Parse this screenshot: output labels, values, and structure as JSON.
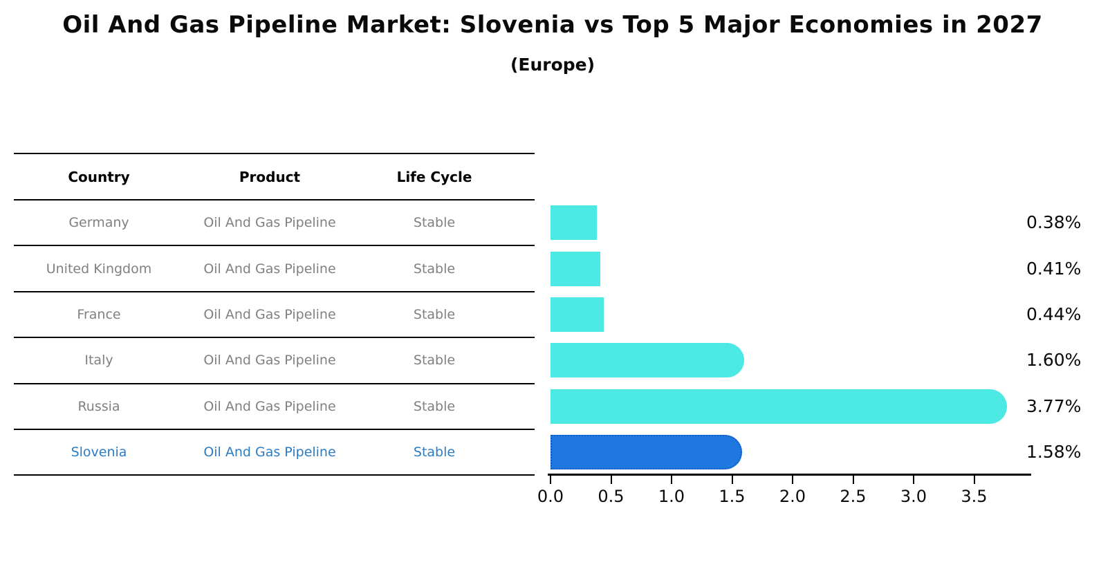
{
  "title": "Oil And Gas Pipeline Market: Slovenia vs Top 5 Major Economies in 2027",
  "subtitle": "(Europe)",
  "table": {
    "headers": [
      "Country",
      "Product",
      "Life Cycle"
    ],
    "rows": [
      {
        "country": "Germany",
        "product": "Oil And Gas Pipeline",
        "life_cycle": "Stable",
        "highlighted": false
      },
      {
        "country": "United Kingdom",
        "product": "Oil And Gas Pipeline",
        "life_cycle": "Stable",
        "highlighted": false
      },
      {
        "country": "France",
        "product": "Oil And Gas Pipeline",
        "life_cycle": "Stable",
        "highlighted": false
      },
      {
        "country": "Italy",
        "product": "Oil And Gas Pipeline",
        "life_cycle": "Stable",
        "highlighted": false
      },
      {
        "country": "Russia",
        "product": "Oil And Gas Pipeline",
        "life_cycle": "Stable",
        "highlighted": false
      },
      {
        "country": "Slovenia",
        "product": "Oil And Gas Pipeline",
        "life_cycle": "Stable",
        "highlighted": true
      }
    ]
  },
  "chart_data": {
    "type": "bar",
    "orientation": "horizontal",
    "title": "Oil And Gas Pipeline Market: Slovenia vs Top 5 Major Economies in 2027",
    "subtitle": "(Europe)",
    "categories": [
      "Germany",
      "United Kingdom",
      "France",
      "Italy",
      "Russia",
      "Slovenia"
    ],
    "values": [
      0.38,
      0.41,
      0.44,
      1.6,
      3.77,
      1.58
    ],
    "value_labels": [
      "0.38%",
      "0.41%",
      "0.44%",
      "1.60%",
      "3.77%",
      "1.58%"
    ],
    "highlight_index": 5,
    "xlabel": "",
    "ylabel": "",
    "xlim": [
      0,
      3.97
    ],
    "xtick_labels": [
      "0.0",
      "0.5",
      "1.0",
      "1.5",
      "2.0",
      "2.5",
      "3.0",
      "3.5"
    ],
    "grid": false,
    "legend": null
  },
  "colors": {
    "bar": "#4BE8E4",
    "highlight_bar": "#1E78E0",
    "highlight_bar_border": "#0F5CC2",
    "highlight_text": "#2C7CC4",
    "row_text": "#808080",
    "header_text": "#000000",
    "line": "#000000",
    "background": "#FFFFFF"
  }
}
